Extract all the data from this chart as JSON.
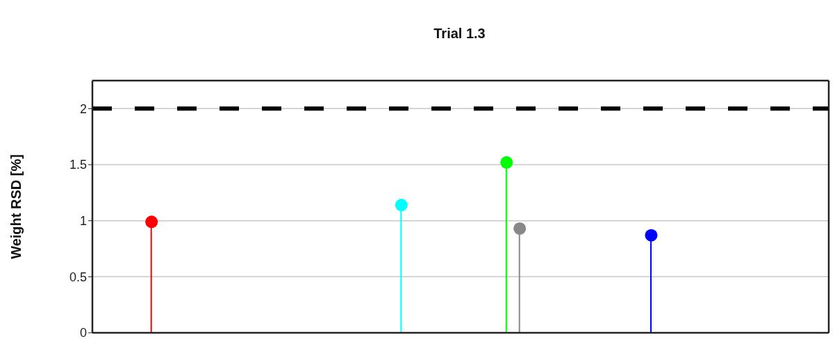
{
  "chart_data": {
    "type": "lollipop",
    "title": "Trial 1.3",
    "ylabel": "Weight RSD [%]",
    "categories": [
      null,
      null,
      null,
      null,
      null,
      null,
      null,
      null,
      null,
      null,
      null,
      null,
      null,
      null,
      null,
      null,
      null,
      null,
      null,
      null,
      null,
      null,
      null,
      null,
      null,
      null,
      null,
      null,
      null,
      null,
      null,
      null,
      null,
      null,
      null,
      null,
      null,
      null,
      null,
      null,
      null,
      null,
      null,
      null,
      null,
      null,
      null,
      null,
      null,
      null,
      null,
      null,
      null,
      null,
      null,
      null
    ],
    "values": [
      null,
      null,
      null,
      null,
      0.99,
      null,
      null,
      null,
      null,
      null,
      null,
      null,
      null,
      null,
      null,
      null,
      null,
      null,
      null,
      null,
      null,
      null,
      null,
      1.14,
      null,
      null,
      null,
      null,
      null,
      null,
      null,
      1.52,
      0.93,
      null,
      null,
      null,
      null,
      null,
      null,
      null,
      null,
      null,
      0.87,
      null,
      null,
      null,
      null,
      null,
      null,
      null,
      null,
      null,
      null,
      null,
      null,
      null
    ],
    "colors": [
      null,
      null,
      null,
      null,
      "#ff0000",
      null,
      null,
      null,
      null,
      null,
      null,
      null,
      null,
      null,
      null,
      null,
      null,
      null,
      null,
      null,
      null,
      null,
      null,
      "#00ffff",
      null,
      null,
      null,
      null,
      null,
      null,
      null,
      "#00ff00",
      "#888888",
      null,
      null,
      null,
      null,
      null,
      null,
      null,
      null,
      null,
      "#0000ff",
      null,
      null,
      null,
      null,
      null,
      null,
      null,
      null,
      null,
      null,
      null,
      null,
      null
    ],
    "ylim": [
      0,
      2.25
    ],
    "yticks": [
      0,
      0.5,
      1,
      1.5,
      2
    ],
    "grid": "y",
    "tick_labels": "y",
    "marker": "circle",
    "ref_lines": [
      {
        "axis": "y",
        "value": 2,
        "color": "#000000",
        "line_style": "dashed"
      }
    ]
  }
}
